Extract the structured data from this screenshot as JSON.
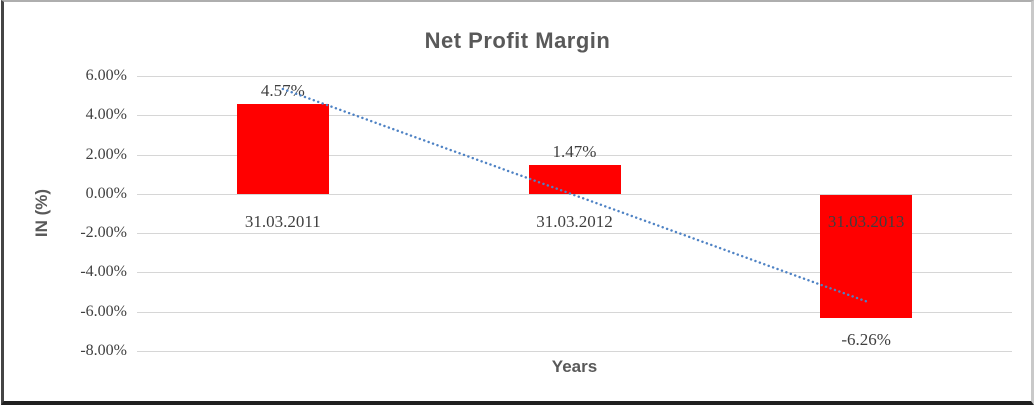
{
  "chart_data": {
    "type": "bar",
    "title": "Net Profit Margin",
    "xlabel": "Years",
    "ylabel": "IN (%)",
    "categories": [
      "31.03.2011",
      "31.03.2012",
      "31.03.2013"
    ],
    "values": [
      4.57,
      1.47,
      -6.26
    ],
    "data_labels": [
      "4.57%",
      "1.47%",
      "-6.26%"
    ],
    "ylim": [
      -8,
      6
    ],
    "yticks": [
      {
        "value": 6,
        "label": "6.00%"
      },
      {
        "value": 4,
        "label": "4.00%"
      },
      {
        "value": 2,
        "label": "2.00%"
      },
      {
        "value": 0,
        "label": "0.00%"
      },
      {
        "value": -2,
        "label": "-2.00%"
      },
      {
        "value": -4,
        "label": "-4.00%"
      },
      {
        "value": -6,
        "label": "-6.00%"
      },
      {
        "value": -8,
        "label": "-8.00%"
      }
    ],
    "grid": true,
    "legend": "none",
    "colors": {
      "bar": "#FF0000",
      "gridline": "#D6D6D6",
      "tick_label": "#3F3F3F",
      "title": "#595959",
      "trendline": "#4E82C4"
    },
    "trendline": {
      "type": "linear",
      "style": "dotted",
      "start_value": 5.34,
      "end_value": -5.47
    }
  }
}
